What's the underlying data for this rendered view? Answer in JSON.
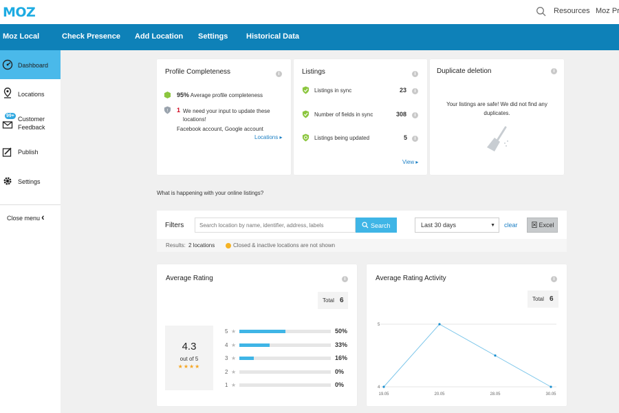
{
  "header": {
    "logo": "MOZ",
    "links": [
      "Resources",
      "Moz Pro"
    ]
  },
  "nav": {
    "items": [
      "Moz Local",
      "Check Presence",
      "Add Location",
      "Settings",
      "Historical Data"
    ]
  },
  "sidebar": {
    "items": [
      {
        "label": "Dashboard",
        "icon": "dashboard-icon",
        "active": true
      },
      {
        "label": "Locations",
        "icon": "location-pin-icon"
      },
      {
        "label": "Customer\nFeedback",
        "icon": "feedback-icon",
        "badge": "99+"
      },
      {
        "label": "Publish",
        "icon": "publish-icon"
      },
      {
        "label": "Settings",
        "icon": "gear-icon"
      }
    ],
    "close_menu": "Close menu"
  },
  "profile": {
    "title": "Profile Completeness",
    "percent": "95%",
    "percent_text": "Average profile completeness",
    "count": "1",
    "count_text": "We need your input to update these locations!",
    "accounts": "Facebook account, Google account",
    "link": "Locations ▸"
  },
  "listings": {
    "title": "Listings",
    "rows": [
      {
        "label": "Listings in sync",
        "value": "23"
      },
      {
        "label": "Number of fields in sync",
        "value": "308"
      },
      {
        "label": "Listings being updated",
        "value": "5"
      }
    ],
    "link": "View ▸"
  },
  "duplicate": {
    "title": "Duplicate deletion",
    "message": "Your listings are safe! We did not find any duplicates."
  },
  "section_heading": "What is happening with your online listings?",
  "filters": {
    "label": "Filters",
    "search_placeholder": "Search location by name, identifier, address, labels",
    "search_button": "Search",
    "date_range": "Last 30 days",
    "clear": "clear",
    "excel": "Excel",
    "results_label": "Results:",
    "results_value": "2 locations",
    "notice": "Closed & inactive locations are not shown"
  },
  "avg_rating": {
    "title": "Average Rating",
    "total_label": "Total",
    "total_value": "6",
    "score": "4.3",
    "out_of": "out of 5",
    "stars": "★★★★",
    "bars": [
      {
        "star": "5",
        "pct": "50%",
        "fill": 0.5
      },
      {
        "star": "4",
        "pct": "33%",
        "fill": 0.33
      },
      {
        "star": "3",
        "pct": "16%",
        "fill": 0.16
      },
      {
        "star": "2",
        "pct": "0%",
        "fill": 0
      },
      {
        "star": "1",
        "pct": "0%",
        "fill": 0
      }
    ]
  },
  "rating_activity": {
    "title": "Average Rating Activity",
    "total_label": "Total",
    "total_value": "6"
  },
  "chart_data": {
    "type": "line",
    "title": "Average Rating Activity",
    "categories": [
      "19.05",
      "20.05",
      "28.05",
      "30.05"
    ],
    "series": [
      {
        "values": [
          4,
          5,
          4.5,
          4
        ]
      }
    ],
    "y_ticks": [
      "5",
      "4"
    ],
    "ylim": [
      4,
      5
    ],
    "grid": true,
    "color": "#7cc6ea"
  },
  "colors": {
    "brand": "#1dabe2",
    "nav": "#0e81b8",
    "active": "#4ab9ea",
    "shield_green": "#8cc63f",
    "warning": "#f5b324",
    "star": "#f5a623"
  }
}
